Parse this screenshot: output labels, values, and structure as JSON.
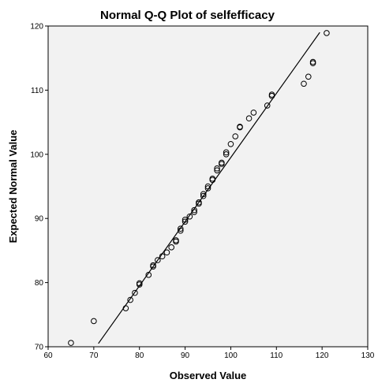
{
  "chart_data": {
    "type": "scatter",
    "title": "Normal Q-Q Plot of selfefficacy",
    "xlabel": "Observed Value",
    "ylabel": "Expected Normal Value",
    "xlim": [
      60,
      130
    ],
    "ylim": [
      70,
      120
    ],
    "xticks": [
      60,
      70,
      80,
      90,
      100,
      110,
      120,
      130
    ],
    "yticks": [
      70,
      80,
      90,
      100,
      110,
      120
    ],
    "grid": false,
    "plot_background": "#f2f2f2",
    "point_color": "#000000",
    "line_color": "#000000",
    "reference_line": {
      "x": [
        71,
        119.5
      ],
      "y": [
        70.5,
        119
      ]
    },
    "series": [
      {
        "marker": "open-circle",
        "points": [
          [
            65,
            70.6
          ],
          [
            70,
            74.0
          ],
          [
            77,
            76.0
          ],
          [
            78,
            77.3
          ],
          [
            79,
            78.4
          ],
          [
            80,
            79.7
          ],
          [
            80,
            79.9
          ],
          [
            82,
            81.2
          ],
          [
            83,
            82.5
          ],
          [
            83,
            82.7
          ],
          [
            84,
            83.5
          ],
          [
            85,
            84.1
          ],
          [
            86,
            84.7
          ],
          [
            87,
            85.5
          ],
          [
            88,
            86.4
          ],
          [
            88,
            86.6
          ],
          [
            89,
            88.1
          ],
          [
            89,
            88.4
          ],
          [
            90,
            89.5
          ],
          [
            90,
            89.8
          ],
          [
            91,
            90.3
          ],
          [
            92,
            91.0
          ],
          [
            92,
            91.3
          ],
          [
            93,
            92.3
          ],
          [
            93,
            92.5
          ],
          [
            94,
            93.5
          ],
          [
            94,
            93.8
          ],
          [
            95,
            94.7
          ],
          [
            95,
            95.0
          ],
          [
            96,
            96.0
          ],
          [
            96,
            96.2
          ],
          [
            97,
            97.5
          ],
          [
            97,
            97.8
          ],
          [
            98,
            98.5
          ],
          [
            98,
            98.7
          ],
          [
            99,
            100.0
          ],
          [
            99,
            100.3
          ],
          [
            100,
            101.6
          ],
          [
            101,
            102.8
          ],
          [
            102,
            104.2
          ],
          [
            102,
            104.3
          ],
          [
            104,
            105.6
          ],
          [
            105,
            106.5
          ],
          [
            108,
            107.6
          ],
          [
            109,
            109.1
          ],
          [
            109,
            109.3
          ],
          [
            116,
            111.0
          ],
          [
            117,
            112.1
          ],
          [
            118,
            114.2
          ],
          [
            118,
            114.4
          ],
          [
            121,
            118.9
          ]
        ]
      }
    ]
  }
}
